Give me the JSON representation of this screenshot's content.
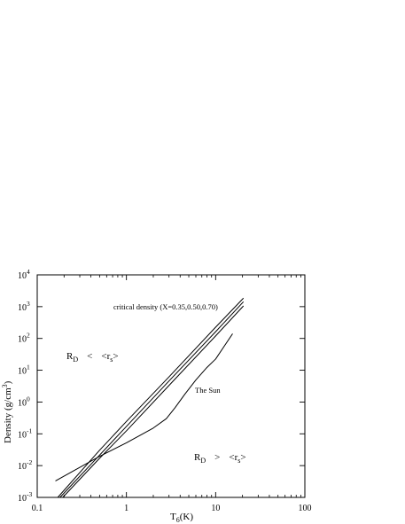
{
  "chart_data": {
    "type": "line",
    "title": "",
    "xlabel": {
      "main": "T",
      "sub": "6",
      "rest": "(K)"
    },
    "ylabel": {
      "main": "Density (g/cm",
      "sup": "3",
      "rest": ")"
    },
    "xscale": "log",
    "yscale": "log",
    "xlim": [
      0.1,
      100
    ],
    "ylim": [
      0.001,
      10000
    ],
    "grid": false,
    "x_ticks": [
      {
        "value": 0.1,
        "label": "0.1"
      },
      {
        "value": 1,
        "label": "1"
      },
      {
        "value": 10,
        "label": "10"
      },
      {
        "value": 100,
        "label": "100"
      }
    ],
    "y_ticks": [
      {
        "value": 0.001,
        "base": "10",
        "exp": "-3"
      },
      {
        "value": 0.01,
        "base": "10",
        "exp": "-2"
      },
      {
        "value": 0.1,
        "base": "10",
        "exp": "-1"
      },
      {
        "value": 1,
        "base": "10",
        "exp": "0"
      },
      {
        "value": 10,
        "base": "10",
        "exp": "1"
      },
      {
        "value": 100,
        "base": "10",
        "exp": "2"
      },
      {
        "value": 1000,
        "base": "10",
        "exp": "3"
      },
      {
        "value": 10000,
        "base": "10",
        "exp": "4"
      }
    ],
    "series": [
      {
        "x": [
          0.17,
          0.5,
          1,
          3,
          10,
          20.5
        ],
        "y": [
          0.001,
          0.0304,
          0.245,
          6.18,
          226,
          1851
        ]
      },
      {
        "x": [
          0.18,
          0.5,
          1,
          3,
          10,
          20.5
        ],
        "y": [
          0.001,
          0.0214,
          0.171,
          4.59,
          163,
          1427
        ]
      },
      {
        "x": [
          0.193,
          0.5,
          1,
          3,
          10,
          20.5
        ],
        "y": [
          0.001,
          0.017,
          0.124,
          3.32,
          120,
          1056
        ]
      },
      {
        "x": [
          0.16,
          0.25,
          0.5,
          1,
          2,
          2.8,
          3.5,
          4.5,
          6,
          8,
          10,
          15.5
        ],
        "y": [
          0.0033,
          0.0066,
          0.0195,
          0.052,
          0.152,
          0.3,
          0.66,
          1.74,
          4.95,
          12.3,
          22.5,
          141
        ]
      }
    ],
    "annotations": {
      "critical": "critical density (X=0.35,0.50,0.70)",
      "sun": "The Sun",
      "region_low": {
        "r": "R",
        "d": "D",
        "op": "<",
        "lb": "<",
        "rs_r": "r",
        "rs_s": "s",
        "rb": ">"
      },
      "region_high": {
        "r": "R",
        "d": "D",
        "op": ">",
        "lb": "<",
        "rs_r": "r",
        "rs_s": "s",
        "rb": ">"
      }
    }
  }
}
